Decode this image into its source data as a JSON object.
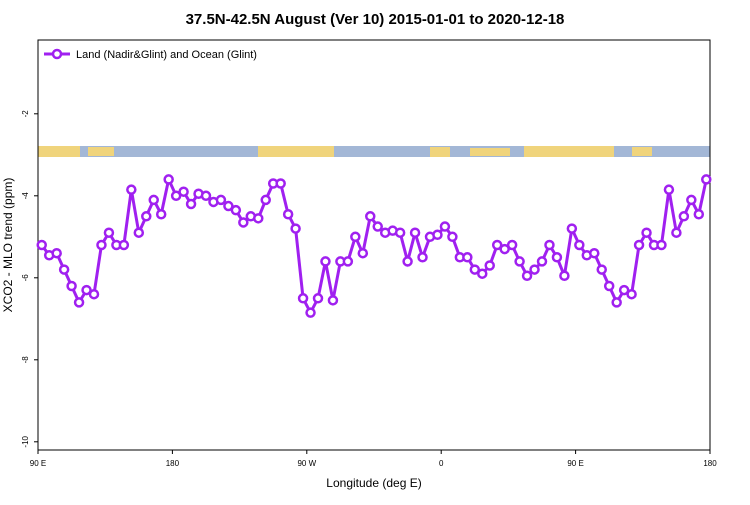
{
  "chart_data": {
    "type": "line",
    "title": "37.5N-42.5N August (Ver 10)   2015-01-01 to 2020-12-18",
    "xlabel": "Longitude (deg E)",
    "ylabel": "XCO2 - MLO trend (ppm)",
    "x": [
      92.5,
      97.5,
      102.5,
      107.5,
      112.5,
      117.5,
      122.5,
      127.5,
      132.5,
      137.5,
      142.5,
      147.5,
      152.5,
      157.5,
      162.5,
      167.5,
      172.5,
      177.5,
      182.5,
      187.5,
      192.5,
      197.5,
      202.5,
      207.5,
      212.5,
      217.5,
      222.5,
      227.5,
      232.5,
      237.5,
      242.5,
      247.5,
      252.5,
      257.5,
      262.5,
      267.5,
      272.5,
      277.5,
      282.5,
      287.5,
      292.5,
      297.5,
      302.5,
      307.5,
      312.5,
      317.5,
      322.5,
      327.5,
      332.5,
      337.5,
      342.5,
      347.5,
      352.5,
      357.5,
      362.5,
      367.5,
      372.5,
      377.5,
      382.5,
      387.5,
      392.5,
      397.5,
      402.5,
      407.5,
      412.5,
      417.5,
      422.5,
      427.5,
      432.5,
      437.5,
      442.5,
      447.5,
      452.5,
      457.5,
      462.5,
      467.5,
      472.5,
      477.5,
      482.5,
      487.5,
      492.5,
      497.5,
      502.5,
      507.5,
      512.5,
      517.5,
      522.5,
      527.5,
      532.5,
      537.5
    ],
    "series": [
      {
        "name": "Land (Nadir&Glint) and Ocean (Glint)",
        "color": "#a020f0",
        "values": [
          -5.2,
          -5.45,
          -5.4,
          -5.8,
          -6.2,
          -6.6,
          -6.3,
          -6.4,
          -5.2,
          -4.9,
          -5.2,
          -5.2,
          -3.85,
          -4.9,
          -4.5,
          -4.1,
          -4.45,
          -3.6,
          -4.0,
          -3.9,
          -4.2,
          -3.95,
          -4.0,
          -4.15,
          -4.1,
          -4.25,
          -4.35,
          -4.65,
          -4.5,
          -4.55,
          -4.1,
          -3.7,
          -3.7,
          -4.45,
          -4.8,
          -6.5,
          -6.85,
          -6.5,
          -5.6,
          -6.55,
          -5.6,
          -5.6,
          -5.0,
          -5.4,
          -4.5,
          -4.75,
          -4.9,
          -4.85,
          -4.9,
          -5.6,
          -4.9,
          -5.5,
          -5.0,
          -4.95,
          -4.75,
          -5.0,
          -5.5,
          -5.5,
          -5.8,
          -5.9,
          -5.7,
          -5.2,
          -5.3,
          -5.2,
          -5.6,
          -5.95,
          -5.8,
          -5.6,
          -5.2,
          -5.5,
          -5.95,
          -4.8,
          -5.2,
          -5.45,
          -5.4,
          -5.8,
          -6.2,
          -6.6,
          -6.3,
          -6.4,
          -5.2,
          -4.9,
          -5.2,
          -5.2,
          -3.85,
          -4.9,
          -4.5,
          -4.1,
          -4.45,
          -3.6
        ]
      }
    ],
    "xlim": [
      90,
      540
    ],
    "xticks": [
      {
        "value": 90,
        "label": "90 E"
      },
      {
        "value": 180,
        "label": "180"
      },
      {
        "value": 270,
        "label": "90 W"
      },
      {
        "value": 360,
        "label": "0"
      },
      {
        "value": 450,
        "label": "90 E"
      },
      {
        "value": 540,
        "label": "180"
      }
    ],
    "ylim": [
      -10.2,
      -0.2
    ],
    "yticks": [
      -10,
      -8,
      -6,
      -4,
      -2
    ],
    "legend": "upper left",
    "grid": false
  }
}
